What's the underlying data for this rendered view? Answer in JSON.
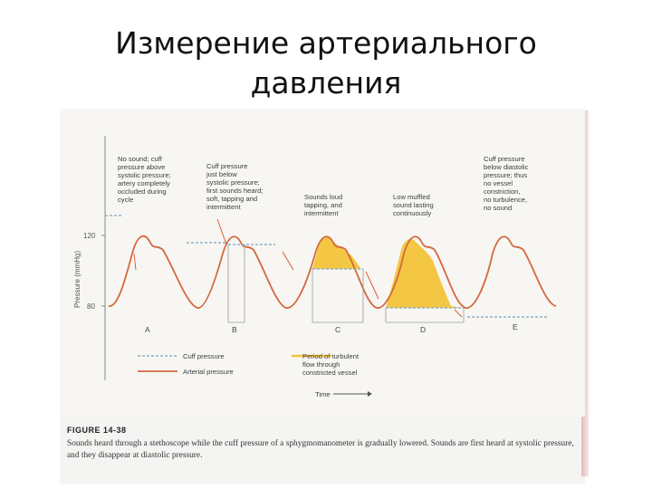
{
  "slide": {
    "title_line1": "Измерение артериального",
    "title_line2": "давления"
  },
  "figure": {
    "y_axis_label": "Pressure (mmHg)",
    "y_ticks": [
      "120",
      "80"
    ],
    "x_axis_label": "Time",
    "annotations": [
      [
        "No sound; cuff",
        "pressure above",
        "systolic pressure;",
        "artery completely",
        "occluded during",
        "cycle"
      ],
      [
        "Cuff pressure",
        "just below",
        "systolic pressure;",
        "first sounds heard;",
        "soft, tapping and",
        "intermittent"
      ],
      [
        "Sounds loud",
        "tapping, and",
        "intermittent"
      ],
      [
        "Low muffled",
        "sound lasting",
        "continuously"
      ],
      [
        "Cuff pressure",
        "below diastolic",
        "pressure; thus",
        "no vessel",
        "constriction,",
        "no turbulence,",
        "no sound"
      ]
    ],
    "phase_letters": [
      "A",
      "B",
      "C",
      "D",
      "E"
    ],
    "legend": {
      "cuff": "Cuff pressure",
      "arterial": "Arterial pressure",
      "turbulent": [
        "Period of turbulent",
        "flow through",
        "constricted vessel"
      ]
    },
    "caption_label": "FIGURE 14-38",
    "caption_text": "Sounds heard through a stethoscope while the cuff pressure of a sphygmomanometer is gradually lowered. Sounds are first heard at systolic pressure, and they disappear at diastolic pressure."
  },
  "colors": {
    "arterial": "#d4693e",
    "cuff": "#8fb0c8",
    "turbulent_fill": "#f2c439",
    "annotation_pointer": "#d8502e"
  }
}
